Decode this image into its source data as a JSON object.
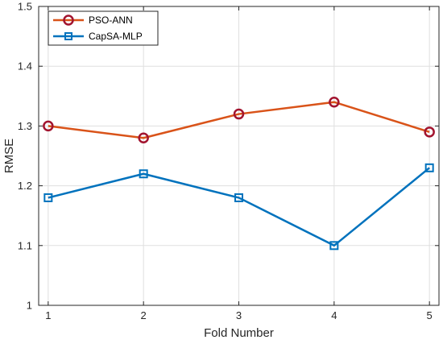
{
  "chart_data": {
    "type": "line",
    "x": [
      1,
      2,
      3,
      4,
      5
    ],
    "xticks": [
      "1",
      "2",
      "3",
      "4",
      "5"
    ],
    "xlabel": "Fold Number",
    "ylabel": "RMSE",
    "xlim": [
      0.9,
      5.1
    ],
    "ylim": [
      1,
      1.5
    ],
    "yticks": [
      "1",
      "1.1",
      "1.2",
      "1.3",
      "1.4",
      "1.5"
    ],
    "grid": true,
    "legend_position": "top-left",
    "series": [
      {
        "name": "PSO-ANN",
        "values": [
          1.3,
          1.28,
          1.32,
          1.34,
          1.29
        ],
        "color": "#d95319",
        "marker": "circle",
        "marker_color": "#a2142f"
      },
      {
        "name": "CapSA-MLP",
        "values": [
          1.18,
          1.22,
          1.18,
          1.1,
          1.23
        ],
        "color": "#0072bd",
        "marker": "square",
        "marker_color": "#0072bd"
      }
    ]
  }
}
